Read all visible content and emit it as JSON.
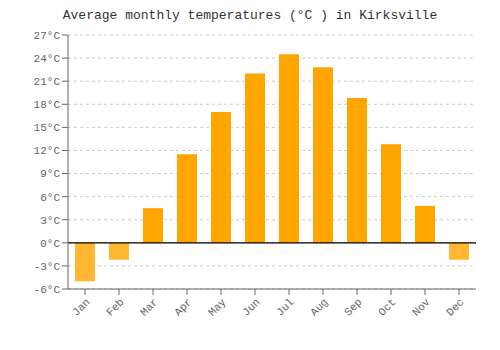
{
  "chart_data": {
    "type": "bar",
    "title": "Average monthly temperatures (°C ) in Kirksville",
    "categories": [
      "Jan",
      "Feb",
      "Mar",
      "Apr",
      "May",
      "Jun",
      "Jul",
      "Aug",
      "Sep",
      "Oct",
      "Nov",
      "Dec"
    ],
    "values": [
      -5.0,
      -2.2,
      4.5,
      11.5,
      17.0,
      22.0,
      24.5,
      22.8,
      18.8,
      12.8,
      4.8,
      -2.2
    ],
    "colors": [
      "#FFB733",
      "#FFB733",
      "#FFA500",
      "#FFA500",
      "#FFA500",
      "#FFA500",
      "#FFA500",
      "#FFA500",
      "#FFA500",
      "#FFA500",
      "#FFA500",
      "#FFB733"
    ],
    "ylim": [
      -6,
      27
    ],
    "yticks": [
      {
        "value": -6,
        "label": "-6°C"
      },
      {
        "value": -3,
        "label": "-3°C"
      },
      {
        "value": 0,
        "label": "0°C"
      },
      {
        "value": 3,
        "label": "3°C"
      },
      {
        "value": 6,
        "label": "6°C"
      },
      {
        "value": 9,
        "label": "9°C"
      },
      {
        "value": 12,
        "label": "12°C"
      },
      {
        "value": 15,
        "label": "15°C"
      },
      {
        "value": 18,
        "label": "18°C"
      },
      {
        "value": 21,
        "label": "21°C"
      },
      {
        "value": 24,
        "label": "24°C"
      },
      {
        "value": 27,
        "label": "27°C"
      }
    ],
    "grid": true
  }
}
